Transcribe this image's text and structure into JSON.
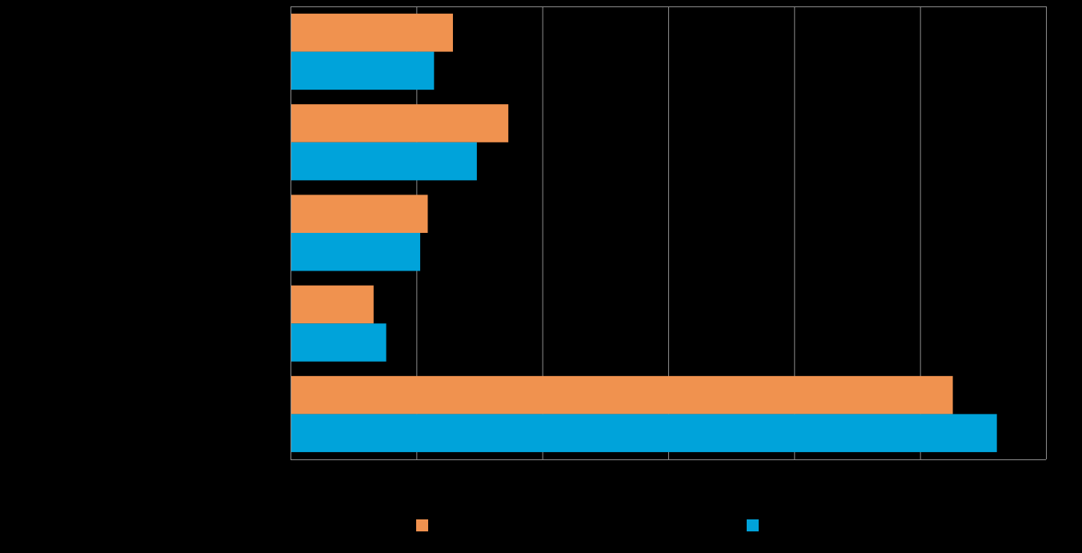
{
  "chart_data": {
    "type": "bar",
    "orientation": "horizontal",
    "categories": [
      "",
      "",
      "",
      "",
      ""
    ],
    "series": [
      {
        "name": "",
        "color": "#F0924F",
        "values": [
          12.9,
          17.3,
          10.9,
          6.6,
          52.6
        ]
      },
      {
        "name": "",
        "color": "#00A3DA",
        "values": [
          11.4,
          14.8,
          10.3,
          7.6,
          56.1
        ]
      }
    ],
    "title": "",
    "xlabel": "",
    "ylabel": "",
    "xlim": [
      0,
      60
    ],
    "x_ticks": [
      0,
      10,
      20,
      30,
      40,
      50,
      60
    ],
    "grid": "vertical",
    "legend": "bottom",
    "colors": {
      "background": "#000000",
      "grid": "#8C8C8C",
      "axis": "#8C8C8C"
    }
  }
}
